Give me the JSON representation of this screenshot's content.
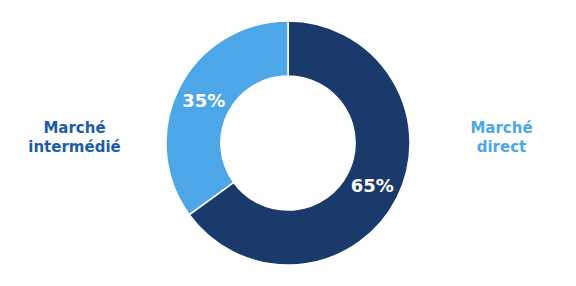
{
  "chart_data": {
    "type": "pie",
    "values": [
      65,
      35
    ],
    "value_labels": [
      "65%",
      "35%"
    ],
    "colors": [
      "#1a3a6b",
      "#4da6e8"
    ],
    "data_labels": true,
    "annotations": [
      {
        "text": "Marché\nintermédié",
        "color": "#1a5ca8"
      },
      {
        "text": "Marché\ndirect",
        "color": "#4da6e8"
      }
    ]
  }
}
